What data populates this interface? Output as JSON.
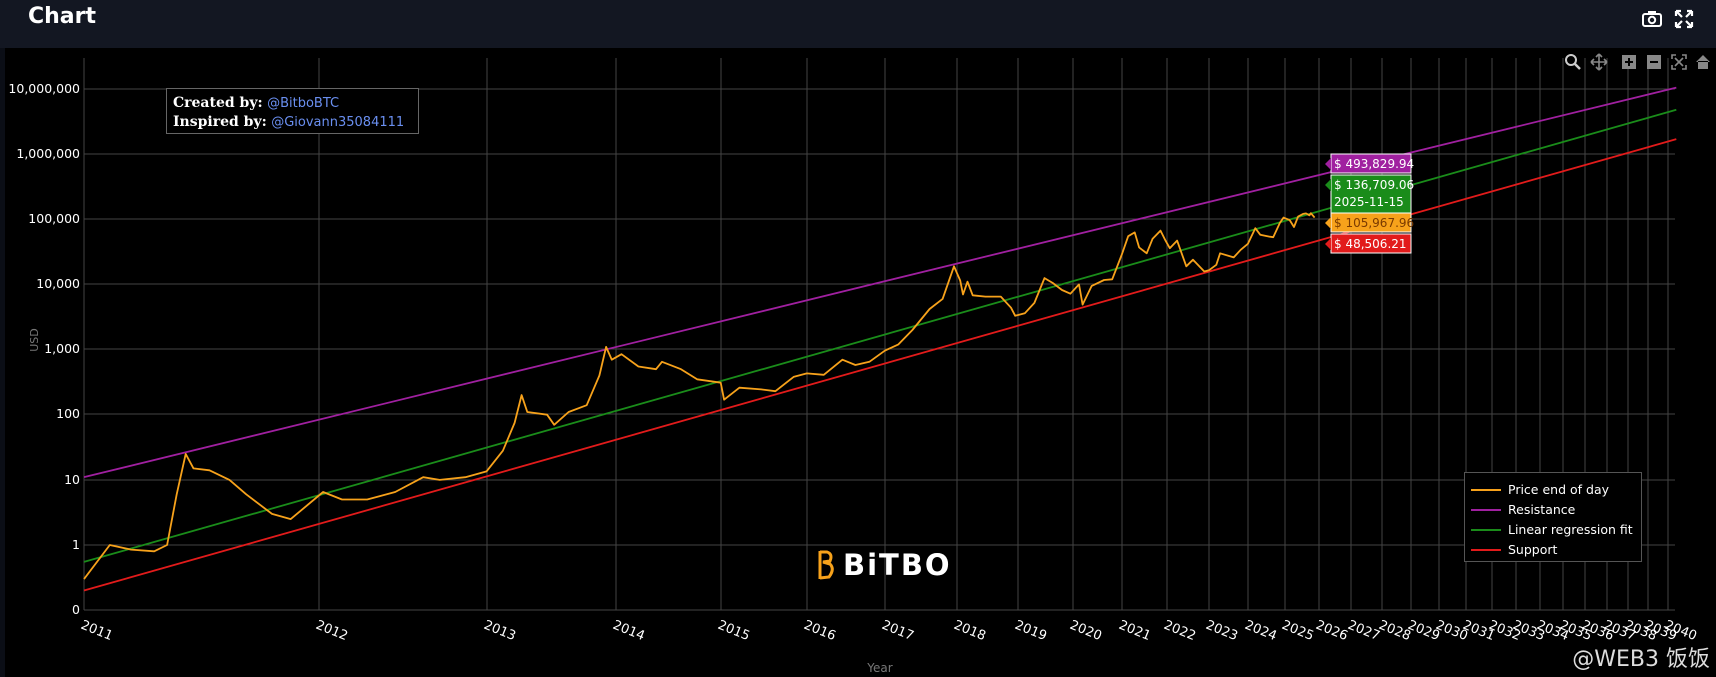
{
  "header": {
    "title": "Chart",
    "camera_icon": "camera-icon",
    "fullscreen_icon": "fullscreen-icon"
  },
  "modebar": {
    "icons": [
      "zoom-icon",
      "pan-icon",
      "zoom-in-icon",
      "zoom-out-icon",
      "autoscale-icon",
      "reset-axes-icon"
    ]
  },
  "credits": {
    "created_label": "Created by:",
    "created_handle": "@BitboBTC",
    "inspired_label": "Inspired by:",
    "inspired_handle": "@Giovann35084111"
  },
  "logo": {
    "text": "BiTBO"
  },
  "watermark": {
    "text": "@WEB3 饭饭"
  },
  "colors": {
    "price": "#f7a21b",
    "resistance": "#a020a0",
    "regression": "#1a8c1a",
    "support": "#e21b1b",
    "background": "#000000",
    "grid": "#444444"
  },
  "chart_data": {
    "type": "line",
    "title": "",
    "xlabel": "Year",
    "ylabel": "USD",
    "y_scale": "log",
    "y_ticks": [
      "0",
      "1",
      "10",
      "100",
      "1,000",
      "10,000",
      "100,000",
      "1,000,000",
      "10,000,000"
    ],
    "x_ticks": [
      "2011",
      "2012",
      "2013",
      "2014",
      "2015",
      "2016",
      "2017",
      "2018",
      "2019",
      "2020",
      "2021",
      "2022",
      "2023",
      "2024",
      "2025",
      "2026",
      "2027",
      "2028",
      "2029",
      "2030",
      "2031",
      "2032",
      "2033",
      "2034",
      "2035",
      "2036",
      "2037",
      "2038",
      "2039",
      "2040"
    ],
    "grid": true,
    "legend_position": "bottom-right",
    "series": [
      {
        "name": "Price end of day",
        "points": [
          [
            "2011-01-01",
            0.3
          ],
          [
            "2011-02-10",
            1.0
          ],
          [
            "2011-03-15",
            0.85
          ],
          [
            "2011-04-20",
            0.8
          ],
          [
            "2011-05-10",
            1.0
          ],
          [
            "2011-05-25",
            6
          ],
          [
            "2011-06-08",
            25
          ],
          [
            "2011-06-20",
            15
          ],
          [
            "2011-07-15",
            14
          ],
          [
            "2011-08-15",
            10
          ],
          [
            "2011-09-10",
            6
          ],
          [
            "2011-10-20",
            3
          ],
          [
            "2011-11-18",
            2.5
          ],
          [
            "2012-01-10",
            6.5
          ],
          [
            "2012-02-20",
            5.0
          ],
          [
            "2012-04-15",
            5.0
          ],
          [
            "2012-06-15",
            6.5
          ],
          [
            "2012-08-15",
            11
          ],
          [
            "2012-09-20",
            10
          ],
          [
            "2012-11-15",
            11
          ],
          [
            "2012-12-31",
            13.5
          ],
          [
            "2013-02-15",
            28
          ],
          [
            "2013-03-20",
            75
          ],
          [
            "2013-04-09",
            200
          ],
          [
            "2013-04-25",
            110
          ],
          [
            "2013-06-20",
            100
          ],
          [
            "2013-07-10",
            70
          ],
          [
            "2013-08-20",
            110
          ],
          [
            "2013-10-10",
            140
          ],
          [
            "2013-11-15",
            400
          ],
          [
            "2013-12-04",
            1100
          ],
          [
            "2013-12-20",
            700
          ],
          [
            "2014-01-20",
            850
          ],
          [
            "2014-03-20",
            550
          ],
          [
            "2014-05-20",
            500
          ],
          [
            "2014-06-10",
            650
          ],
          [
            "2014-08-15",
            500
          ],
          [
            "2014-10-10",
            350
          ],
          [
            "2014-12-31",
            310
          ],
          [
            "2015-01-14",
            170
          ],
          [
            "2015-03-20",
            260
          ],
          [
            "2015-06-20",
            245
          ],
          [
            "2015-08-20",
            230
          ],
          [
            "2015-11-05",
            380
          ],
          [
            "2015-12-31",
            430
          ],
          [
            "2016-03-20",
            410
          ],
          [
            "2016-06-15",
            700
          ],
          [
            "2016-08-15",
            580
          ],
          [
            "2016-10-20",
            650
          ],
          [
            "2016-12-31",
            960
          ],
          [
            "2017-03-10",
            1200
          ],
          [
            "2017-05-20",
            2000
          ],
          [
            "2017-08-15",
            4200
          ],
          [
            "2017-10-20",
            6000
          ],
          [
            "2017-12-17",
            19000
          ],
          [
            "2018-01-20",
            11500
          ],
          [
            "2018-02-06",
            7000
          ],
          [
            "2018-03-05",
            11000
          ],
          [
            "2018-04-05",
            6800
          ],
          [
            "2018-06-20",
            6500
          ],
          [
            "2018-09-20",
            6500
          ],
          [
            "2018-11-20",
            4400
          ],
          [
            "2018-12-15",
            3300
          ],
          [
            "2019-02-15",
            3600
          ],
          [
            "2019-04-20",
            5200
          ],
          [
            "2019-06-26",
            12500
          ],
          [
            "2019-08-20",
            10500
          ],
          [
            "2019-10-20",
            8200
          ],
          [
            "2019-12-15",
            7200
          ],
          [
            "2020-02-15",
            10000
          ],
          [
            "2020-03-13",
            4900
          ],
          [
            "2020-05-20",
            9500
          ],
          [
            "2020-08-20",
            11700
          ],
          [
            "2020-10-20",
            12000
          ],
          [
            "2020-12-31",
            29000
          ],
          [
            "2021-02-20",
            55000
          ],
          [
            "2021-04-14",
            63000
          ],
          [
            "2021-05-20",
            37000
          ],
          [
            "2021-07-20",
            30000
          ],
          [
            "2021-09-05",
            50000
          ],
          [
            "2021-11-09",
            67000
          ],
          [
            "2021-12-20",
            47000
          ],
          [
            "2022-01-25",
            36000
          ],
          [
            "2022-03-30",
            47000
          ],
          [
            "2022-06-18",
            19000
          ],
          [
            "2022-08-15",
            24000
          ],
          [
            "2022-11-21",
            15800
          ],
          [
            "2022-12-31",
            16500
          ],
          [
            "2023-03-10",
            20000
          ],
          [
            "2023-04-15",
            30000
          ],
          [
            "2023-08-20",
            26000
          ],
          [
            "2023-10-25",
            34000
          ],
          [
            "2023-12-31",
            42000
          ],
          [
            "2024-03-13",
            73000
          ],
          [
            "2024-05-01",
            58000
          ],
          [
            "2024-08-05",
            54000
          ],
          [
            "2024-09-06",
            53000
          ],
          [
            "2024-11-12",
            88000
          ],
          [
            "2024-12-17",
            106000
          ],
          [
            "2025-02-20",
            97000
          ],
          [
            "2025-04-08",
            76000
          ],
          [
            "2025-05-22",
            110000
          ],
          [
            "2025-07-14",
            121000
          ],
          [
            "2025-08-14",
            123000
          ],
          [
            "2025-09-20",
            115000
          ],
          [
            "2025-10-06",
            124000
          ],
          [
            "2025-11-15",
            105967.96
          ]
        ]
      },
      {
        "name": "Resistance",
        "start": [
          "2011-01-01",
          11
        ],
        "end": [
          "2040-06-01",
          10500000
        ]
      },
      {
        "name": "Linear regression fit",
        "start": [
          "2011-01-01",
          0.55
        ],
        "end": [
          "2040-06-01",
          4800000
        ]
      },
      {
        "name": "Support",
        "start": [
          "2011-01-01",
          0.2
        ],
        "end": [
          "2040-06-01",
          1700000
        ]
      }
    ],
    "annotations": [
      {
        "label": "$ 493,829.94",
        "series": "Resistance"
      },
      {
        "label": "$ 136,709.06",
        "series": "Linear regression fit",
        "date": "2025-11-15"
      },
      {
        "label": "$ 105,967.96",
        "series": "Price end of day"
      },
      {
        "label": "$ 48,506.21",
        "series": "Support"
      }
    ]
  }
}
